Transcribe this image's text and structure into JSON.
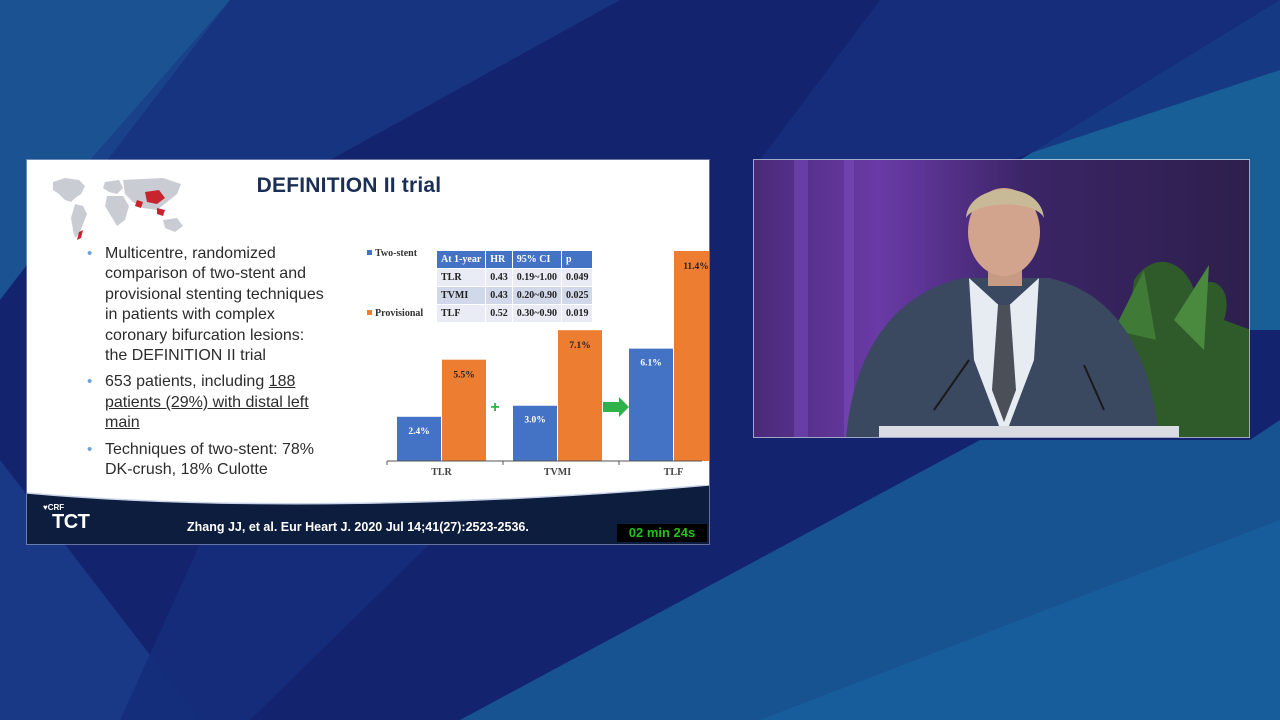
{
  "slide": {
    "title": "DEFINITION II trial",
    "bullets": [
      {
        "line1": "Multicentre, randomized",
        "line2": "comparison of two-stent and",
        "line3": "provisional stenting techniques",
        "line4": "in patients with complex",
        "line5": "coronary bifurcation lesions:",
        "line6": "the DEFINITION II trial"
      },
      {
        "line1": "653 patients, including ",
        "line1u": "188",
        "line2": "patients (29%) with distal left",
        "line3": "main"
      },
      {
        "line1": "Techniques of two-stent: 78%",
        "line2": "DK-crush, 18% Culotte"
      }
    ],
    "citation": "Zhang JJ, et al. Eur Heart J. 2020 Jul 14;41(27):2523-2536.",
    "timer": "02 min 24s",
    "logo": {
      "crf": "CRF",
      "tct": "TCT"
    },
    "table": {
      "headers": [
        "At 1-year",
        "HR",
        "95% CI",
        "p"
      ],
      "rows": [
        [
          "TLR",
          "0.43",
          "0.19~1.00",
          "0.049"
        ],
        [
          "TVMI",
          "0.43",
          "0.20~0.90",
          "0.025"
        ],
        [
          "TLF",
          "0.52",
          "0.30~0.90",
          "0.019"
        ]
      ]
    }
  },
  "chart_data": {
    "type": "bar",
    "categories": [
      "TLR",
      "TVMI",
      "TLF"
    ],
    "series": [
      {
        "name": "Two-stent",
        "values": [
          2.4,
          3.0,
          6.1
        ],
        "labels": [
          "2.4%",
          "3.0%",
          "6.1%"
        ],
        "color": "#4472c4"
      },
      {
        "name": "Provisional",
        "values": [
          5.5,
          7.1,
          11.4
        ],
        "labels": [
          "5.5%",
          "7.1%",
          "11.4%"
        ],
        "color": "#ed7d31"
      }
    ],
    "ylim": [
      0,
      11.4
    ],
    "grid": false,
    "legend": "left",
    "annotations": [
      {
        "between": [
          "TLR",
          "TVMI"
        ],
        "symbol": "+",
        "color": "#2db34a"
      },
      {
        "between": [
          "TVMI",
          "TLF"
        ],
        "symbol": "arrow-right",
        "color": "#2db34a"
      }
    ]
  },
  "colors": {
    "background": "#13236e",
    "accent_teal": "#1a6aa0",
    "two_stent": "#4472c4",
    "provisional": "#ed7d31",
    "timer_text": "#22c21d",
    "footer": "#0c1d3e"
  },
  "icons": {
    "map": "world-map-icon",
    "plus": "plus-icon",
    "arrow": "arrow-right-icon"
  }
}
